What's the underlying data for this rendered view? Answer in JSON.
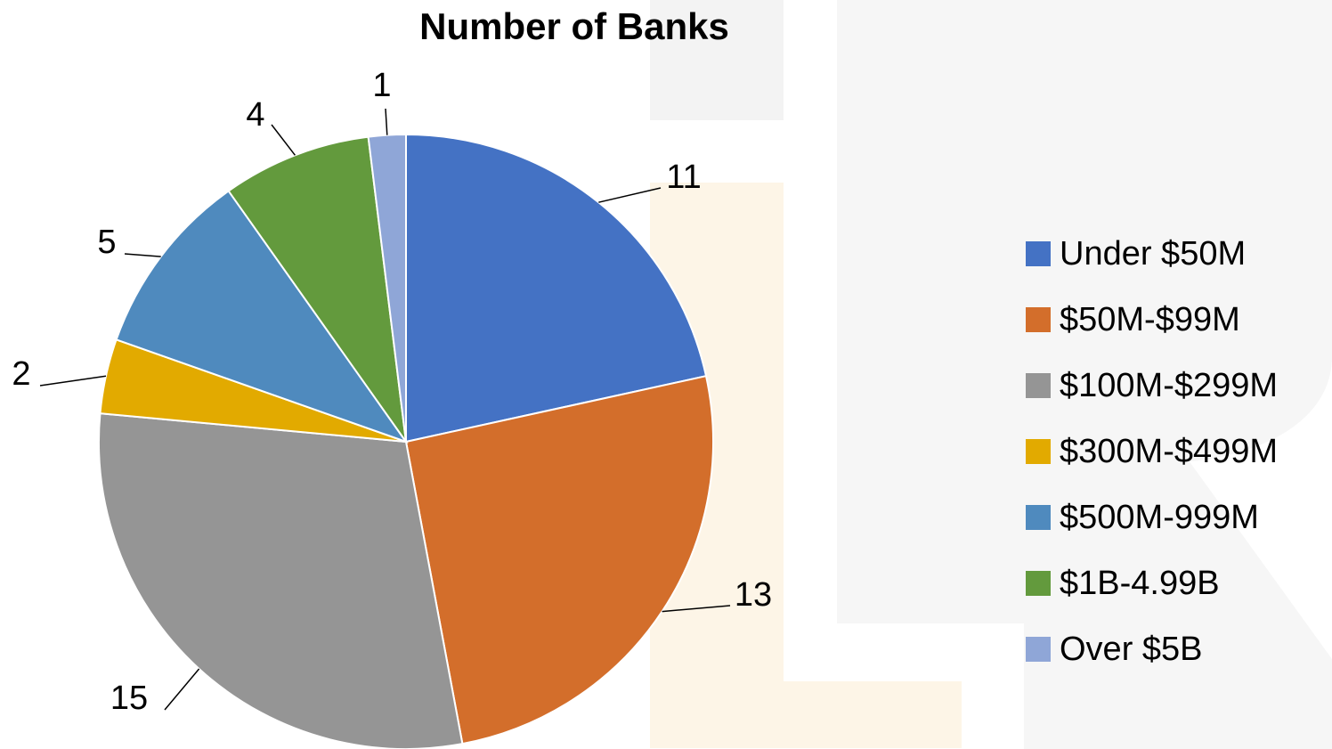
{
  "chart_data": {
    "type": "pie",
    "title": "Number of Banks",
    "categories": [
      "Under $50M",
      "$50M-$99M",
      "$100M-$299M",
      "$300M-$499M",
      "$500M-999M",
      "$1B-4.99B",
      "Over $5B"
    ],
    "values": [
      11,
      13,
      15,
      2,
      5,
      4,
      1
    ],
    "data_labels": [
      "11",
      "13",
      "15",
      "2",
      "5",
      "4",
      "1"
    ],
    "colors": [
      "#4472C4",
      "#D36E2B",
      "#959595",
      "#E2AA00",
      "#4F8ABE",
      "#639A3D",
      "#8FA6D7"
    ],
    "legend_position": "right",
    "start_angle_deg": 0,
    "direction": "clockwise"
  }
}
